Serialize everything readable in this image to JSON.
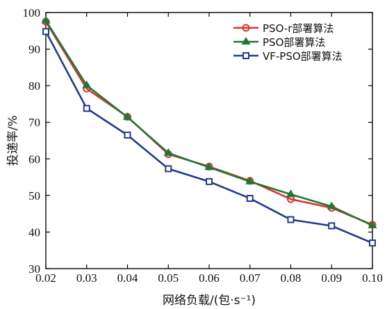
{
  "chart_data": {
    "type": "line",
    "xlabel": "网络负载/(包·s⁻¹)",
    "ylabel": "投递率/%",
    "x": [
      0.02,
      0.03,
      0.04,
      0.05,
      0.06,
      0.07,
      0.08,
      0.09,
      0.1
    ],
    "x_tick_labels": [
      "0.02",
      "0.03",
      "0.04",
      "0.05",
      "0.06",
      "0.07",
      "0.08",
      "0.09",
      "0.10"
    ],
    "xlim": [
      0.02,
      0.1
    ],
    "ylim": [
      30,
      100
    ],
    "y_ticks": [
      30,
      40,
      50,
      60,
      70,
      80,
      90,
      100
    ],
    "grid": false,
    "legend_position": "top-right",
    "series": [
      {
        "name": "PSO-r部署算法",
        "color": "#e03030",
        "marker": "circle",
        "values": [
          97.5,
          79.2,
          71.5,
          61.3,
          57.9,
          54.0,
          49.0,
          46.6,
          42.0
        ]
      },
      {
        "name": "PSO部署算法",
        "color": "#1d7a35",
        "marker": "triangle",
        "values": [
          97.8,
          80.1,
          71.4,
          61.6,
          57.7,
          53.8,
          50.3,
          47.0,
          41.8
        ]
      },
      {
        "name": "VF-PSO部署算法",
        "color": "#203a8a",
        "marker": "square",
        "values": [
          94.8,
          73.8,
          66.5,
          57.3,
          53.8,
          49.2,
          43.4,
          41.7,
          37.0
        ]
      }
    ]
  }
}
